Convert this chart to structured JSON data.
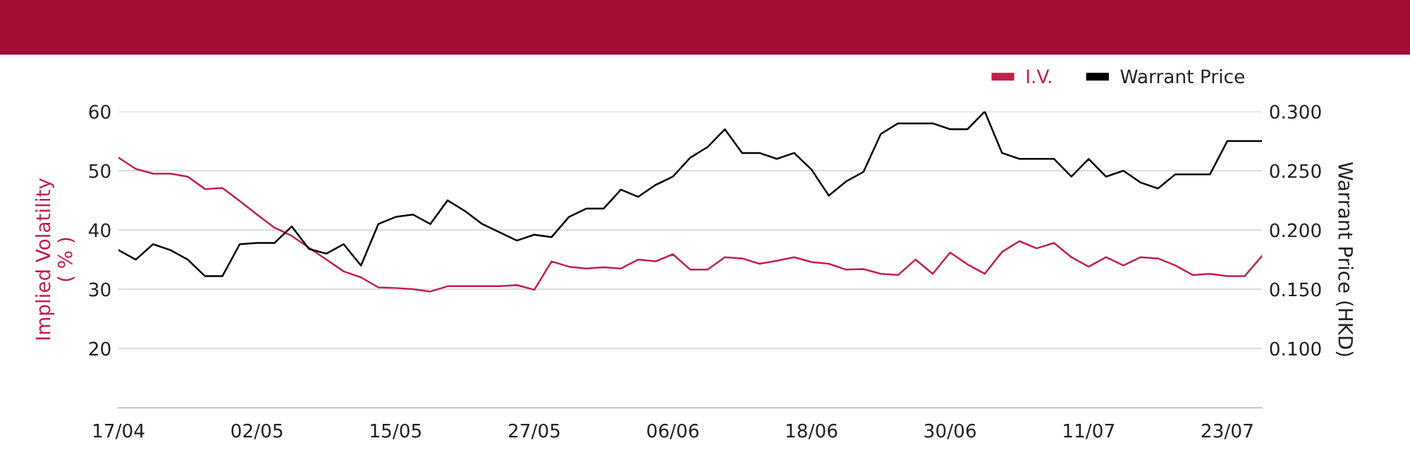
{
  "chart_data": {
    "type": "line",
    "categories": [
      "17/04",
      null,
      null,
      null,
      null,
      null,
      null,
      null,
      "02/05",
      null,
      null,
      null,
      null,
      null,
      null,
      null,
      "15/05",
      null,
      null,
      null,
      null,
      null,
      null,
      null,
      "27/05",
      null,
      null,
      null,
      null,
      null,
      null,
      null,
      "06/06",
      null,
      null,
      null,
      null,
      null,
      null,
      null,
      "18/06",
      null,
      null,
      null,
      null,
      null,
      null,
      null,
      "30/06",
      null,
      null,
      null,
      null,
      null,
      null,
      null,
      "11/07",
      null,
      null,
      null,
      null,
      null,
      null,
      null,
      "23/07",
      null,
      null
    ],
    "series": [
      {
        "name": "I.V.",
        "color": "#c41e4a",
        "values": [
          52.2,
          50.3,
          49.5,
          49.5,
          49.0,
          46.9,
          47.1,
          44.9,
          42.6,
          40.4,
          39.0,
          37.0,
          35.0,
          33.0,
          32.0,
          30.3,
          30.2,
          30.0,
          29.6,
          30.5,
          30.5,
          30.5,
          30.5,
          30.7,
          29.9,
          34.7,
          33.8,
          33.5,
          33.7,
          33.5,
          35.0,
          34.7,
          35.9,
          33.3,
          33.3,
          35.4,
          35.2,
          34.3,
          34.8,
          35.4,
          34.6,
          34.3,
          33.3,
          33.4,
          32.6,
          32.4,
          35.0,
          32.6,
          36.2,
          34.2,
          32.6,
          36.3,
          38.1,
          36.9,
          37.8,
          35.4,
          33.8,
          35.4,
          34.0,
          35.4,
          35.2,
          34.0,
          32.4,
          32.6,
          32.2,
          32.2,
          35.6
        ]
      },
      {
        "name": "Warrant Price",
        "color": "#000000",
        "axis": "y2",
        "values": [
          0.183,
          0.175,
          0.188,
          0.183,
          0.175,
          0.161,
          0.161,
          0.188,
          0.189,
          0.189,
          0.203,
          0.184,
          0.18,
          0.188,
          0.17,
          0.205,
          0.211,
          0.213,
          0.205,
          0.225,
          0.216,
          0.205,
          0.198,
          0.191,
          0.196,
          0.194,
          0.211,
          0.218,
          0.218,
          0.234,
          0.228,
          0.238,
          0.245,
          0.261,
          0.27,
          0.285,
          0.265,
          0.265,
          0.26,
          0.265,
          0.251,
          0.229,
          0.241,
          0.249,
          0.281,
          0.29,
          0.29,
          0.29,
          0.285,
          0.285,
          0.3,
          0.265,
          0.26,
          0.26,
          0.26,
          0.245,
          0.26,
          0.245,
          0.25,
          0.24,
          0.235,
          0.247,
          0.247,
          0.247,
          0.275,
          0.275,
          0.275
        ]
      }
    ],
    "ylabel": "Implied Volatility\n( % )",
    "y2label": "Warrant Price (HKD)",
    "ylim": [
      10,
      60
    ],
    "yticks": [
      20,
      30,
      40,
      50,
      60
    ],
    "y2lim": [
      0.05,
      0.3
    ],
    "y2ticks": [
      {
        "value": 0.1,
        "label": "0.100"
      },
      {
        "value": 0.15,
        "label": "0.150"
      },
      {
        "value": 0.2,
        "label": "0.200"
      },
      {
        "value": 0.25,
        "label": "0.250"
      },
      {
        "value": 0.3,
        "label": "0.300"
      }
    ],
    "grid": "y",
    "legend": "top right",
    "marker": "none",
    "line_style": "solid"
  }
}
